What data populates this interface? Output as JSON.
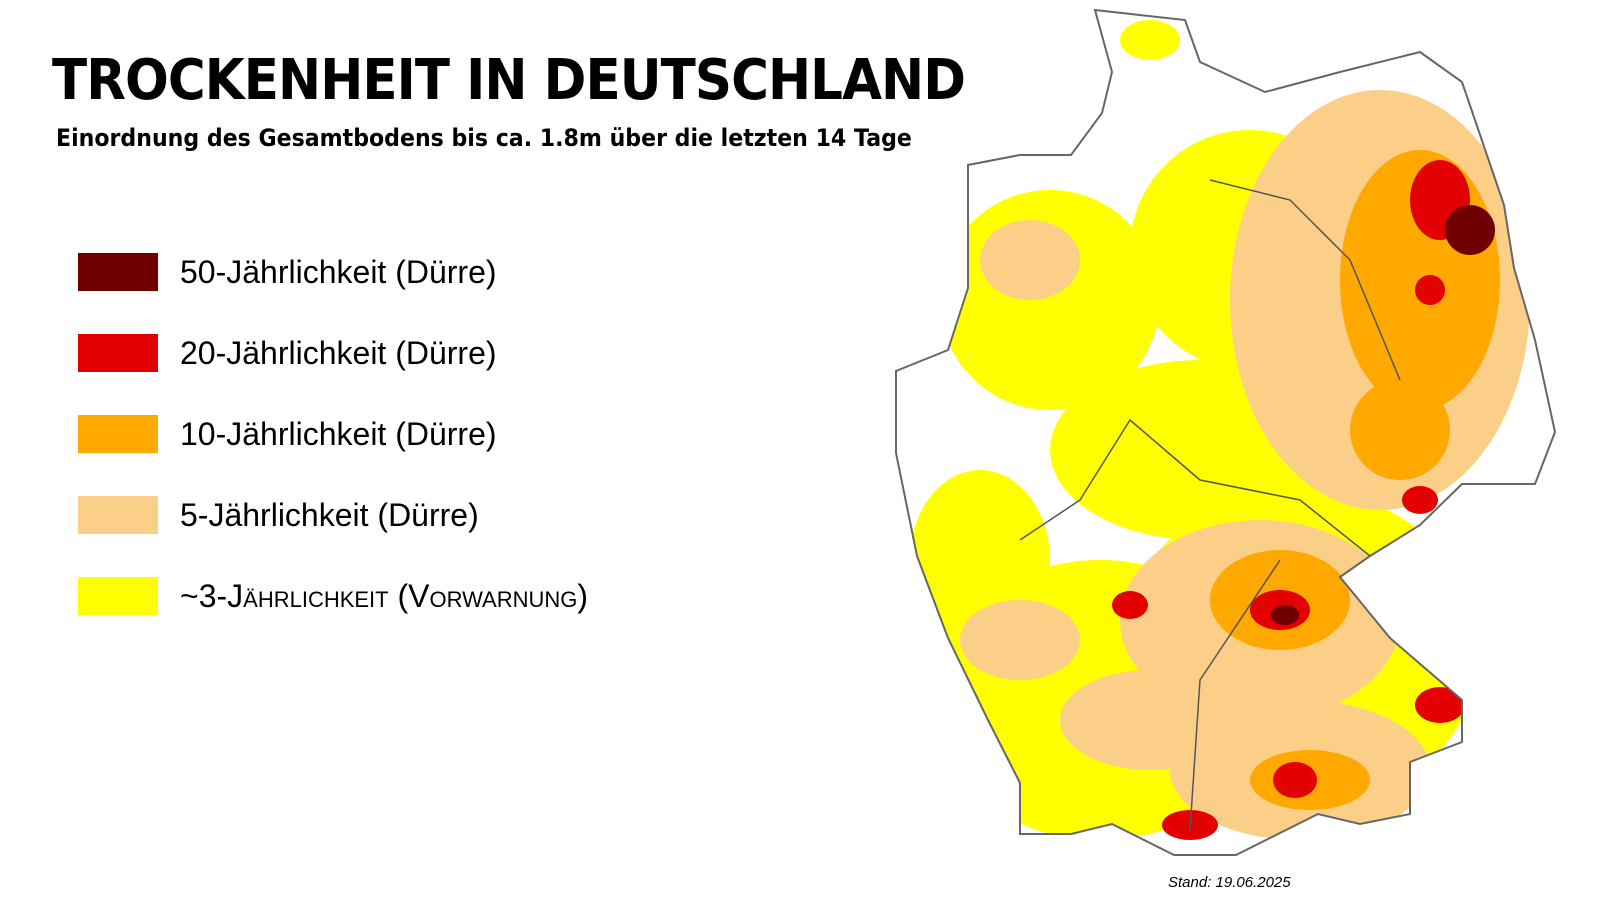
{
  "header": {
    "title": "TROCKENHEIT IN DEUTSCHLAND",
    "subtitle": "Einordnung des Gesamtbodens bis ca. 1.8m über die letzten 14 Tage"
  },
  "legend": [
    {
      "label": "50-Jährlichkeit (Dürre)",
      "color": "#6e0000"
    },
    {
      "label": "20-Jährlichkeit (Dürre)",
      "color": "#e30000"
    },
    {
      "label": "10-Jährlichkeit (Dürre)",
      "color": "#ffa800"
    },
    {
      "label": "5-Jährlichkeit (Dürre)",
      "color": "#fbcf87"
    },
    {
      "label": "~3-Jährlichkeit (Vorwarnung)",
      "color": "#ffff00"
    }
  ],
  "footer": {
    "stand": "Stand: 19.06.2025"
  }
}
